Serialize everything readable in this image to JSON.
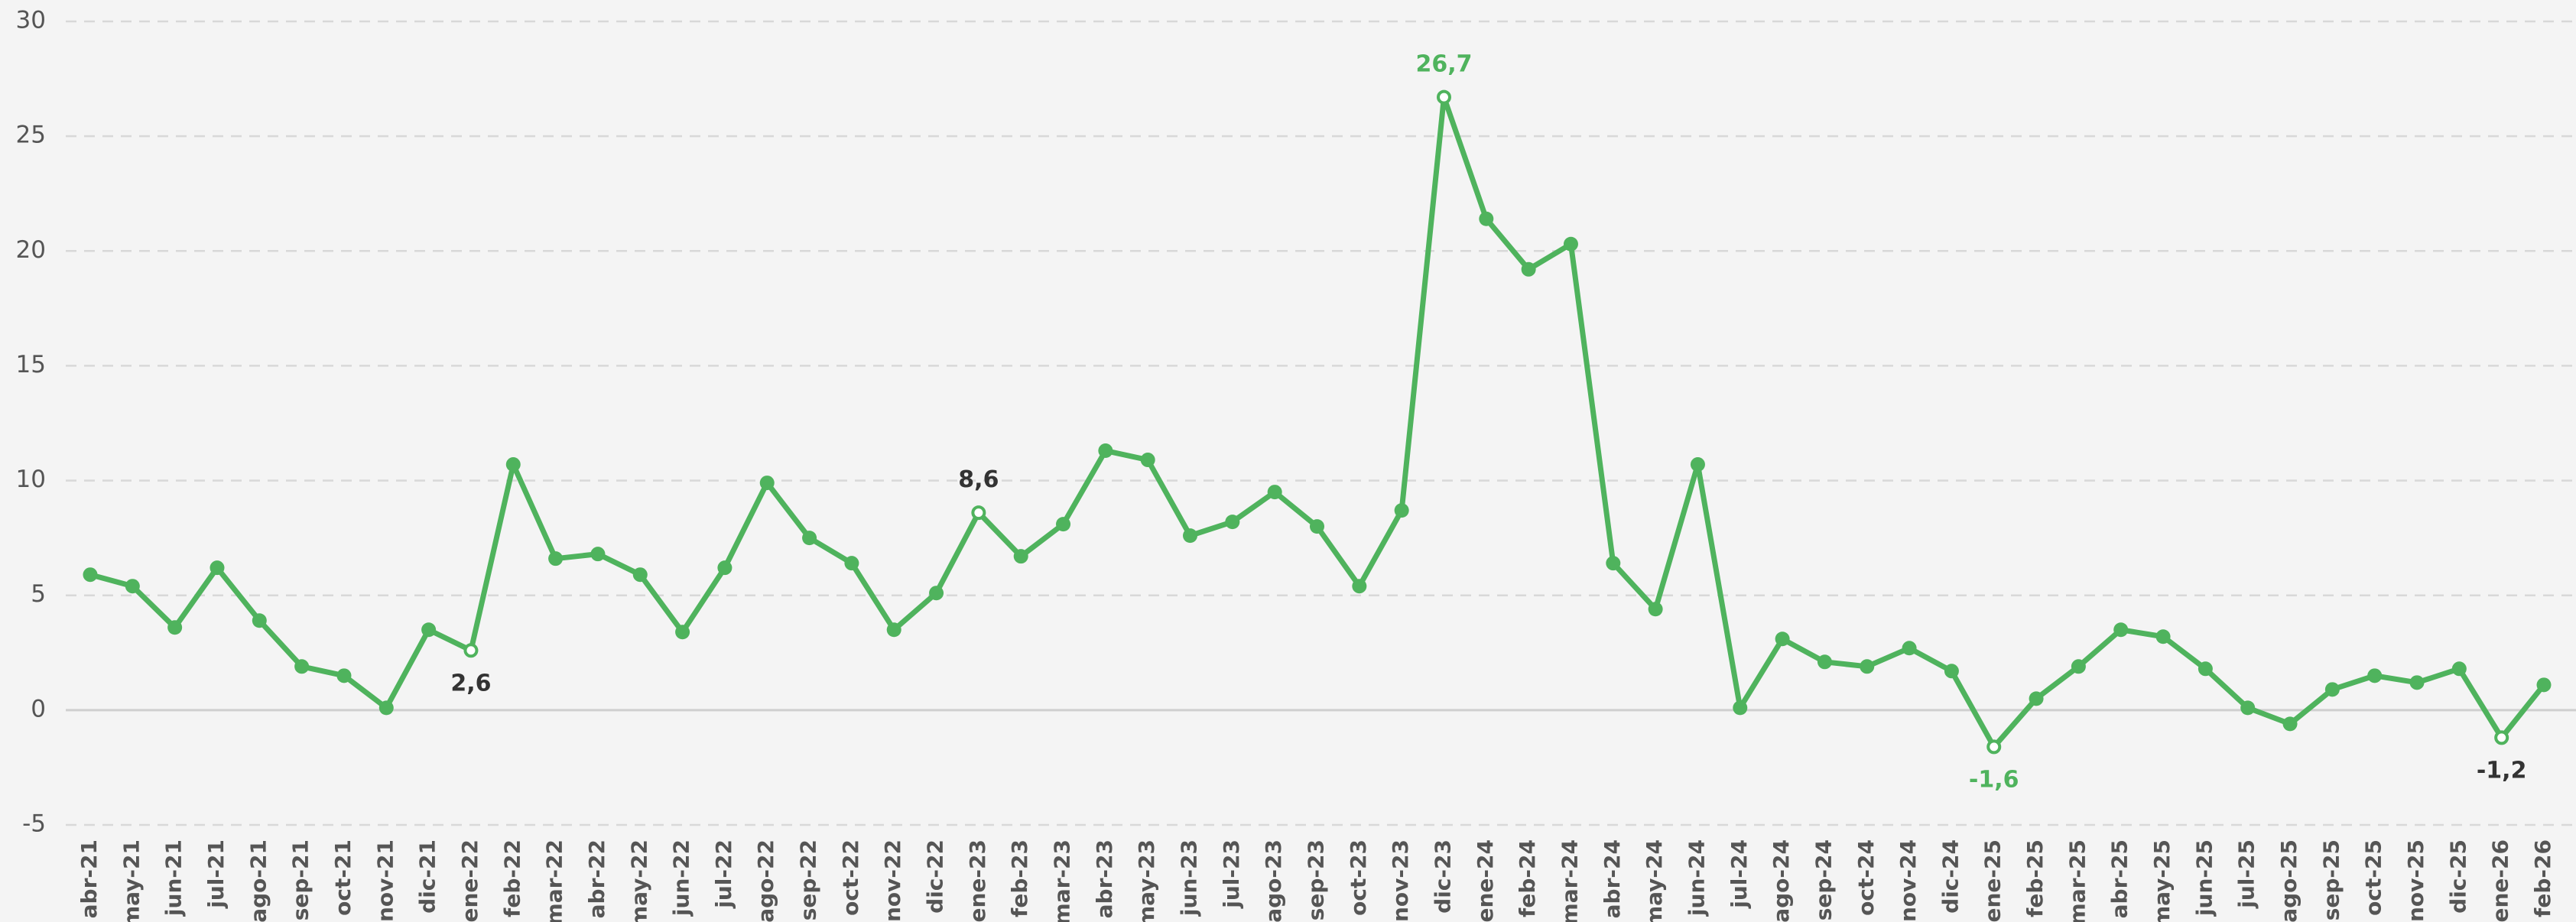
{
  "chart_data": {
    "type": "line",
    "categories": [
      "abr-21",
      "may-21",
      "jun-21",
      "jul-21",
      "ago-21",
      "sep-21",
      "oct-21",
      "nov-21",
      "dic-21",
      "ene-22",
      "feb-22",
      "mar-22",
      "abr-22",
      "may-22",
      "jun-22",
      "jul-22",
      "ago-22",
      "sep-22",
      "oct-22",
      "nov-22",
      "dic-22",
      "ene-23",
      "feb-23",
      "mar-23",
      "abr-23",
      "may-23",
      "jun-23",
      "jul-23",
      "ago-23",
      "sep-23",
      "oct-23",
      "nov-23",
      "dic-23",
      "ene-24",
      "feb-24",
      "mar-24",
      "abr-24",
      "may-24",
      "jun-24",
      "jul-24",
      "ago-24",
      "sep-24",
      "oct-24",
      "nov-24",
      "dic-24",
      "ene-25",
      "feb-25",
      "mar-25",
      "abr-25",
      "may-25",
      "jun-25",
      "jul-25",
      "ago-25",
      "sep-25",
      "oct-25",
      "nov-25",
      "dic-25",
      "ene-26",
      "feb-26"
    ],
    "series": [
      {
        "color": "#4fb35d",
        "values": [
          5.9,
          5.4,
          3.6,
          6.2,
          3.9,
          1.9,
          1.5,
          0.1,
          3.5,
          2.6,
          10.7,
          6.6,
          6.8,
          5.9,
          3.4,
          6.2,
          9.9,
          7.5,
          6.4,
          3.5,
          5.1,
          8.6,
          6.7,
          8.1,
          11.3,
          10.9,
          7.6,
          8.2,
          9.5,
          8.0,
          5.4,
          8.7,
          26.7,
          21.4,
          19.2,
          20.3,
          6.4,
          4.4,
          10.7,
          0.1,
          3.1,
          2.1,
          1.9,
          2.7,
          1.7,
          -1.6,
          0.5,
          1.9,
          3.5,
          3.2,
          1.8,
          0.1,
          -0.6,
          0.9,
          1.5,
          1.2,
          1.8,
          -1.2,
          1.1
        ],
        "value_labels": [
          null,
          null,
          null,
          null,
          null,
          null,
          null,
          null,
          null,
          "2,6",
          null,
          null,
          null,
          null,
          null,
          null,
          null,
          null,
          null,
          null,
          null,
          "8,6",
          null,
          null,
          null,
          null,
          null,
          null,
          null,
          null,
          null,
          null,
          "26,7",
          null,
          null,
          null,
          null,
          null,
          null,
          null,
          null,
          null,
          null,
          null,
          null,
          "-1,6",
          null,
          null,
          null,
          null,
          null,
          null,
          null,
          null,
          null,
          null,
          null,
          "-1,2",
          null
        ]
      }
    ],
    "ylim": [
      -5,
      30
    ],
    "yticks": [
      -5,
      0,
      5,
      10,
      15,
      20,
      25,
      30
    ],
    "grid": true
  }
}
